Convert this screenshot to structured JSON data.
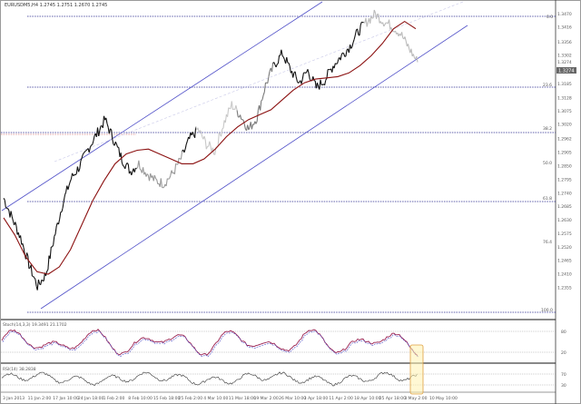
{
  "window": {
    "title": "EURUSDM5,H4 1.2745 1.2751 1.2670 1.2745"
  },
  "chart_data": {
    "type": "line",
    "series_kind": "candlestick-price",
    "symbol": "EURUSD",
    "ylim": [
      1.224,
      1.3505
    ],
    "current_price": "1.3274",
    "price_labels": [
      "1.3470",
      "1.3416",
      "1.3356",
      "1.3302",
      "1.3274",
      "1.3185",
      "1.3128",
      "1.3075",
      "1.3020",
      "1.2962",
      "1.2905",
      "1.2850",
      "1.2795",
      "1.2740",
      "1.2685",
      "1.2630",
      "1.2575",
      "1.2520",
      "1.2465",
      "1.2410",
      "1.2355"
    ],
    "fib_labels": [
      "0.0",
      "23.6",
      "38.2",
      "50.0",
      "61.8",
      "76.4",
      "100.0"
    ],
    "x_labels": [
      "3 Jan 2013",
      "11 Jan 2:00",
      "17 Jan 10:00",
      "24 Jan 18:00",
      "1 Feb 2:00",
      "8 Feb 10:00",
      "15 Feb 18:00",
      "25 Feb 2:00",
      "4 Mar 10:00",
      "11 Mar 18:00",
      "19 Mar 2:00",
      "26 Mar 10:00",
      "3 Apr 18:00",
      "11 Apr 2:00",
      "18 Apr 10:00",
      "25 Apr 18:00",
      "3 May 2:00",
      "10 May 10:00"
    ],
    "ma_series": [
      [
        0,
        1.264
      ],
      [
        3,
        1.257
      ],
      [
        6,
        1.248
      ],
      [
        9,
        1.242
      ],
      [
        12,
        1.241
      ],
      [
        15,
        1.244
      ],
      [
        18,
        1.251
      ],
      [
        21,
        1.261
      ],
      [
        24,
        1.271
      ],
      [
        27,
        1.279
      ],
      [
        30,
        1.286
      ],
      [
        33,
        1.29
      ],
      [
        36,
        1.2915
      ],
      [
        39,
        1.292
      ],
      [
        42,
        1.29
      ],
      [
        45,
        1.288
      ],
      [
        48,
        1.286
      ],
      [
        51,
        1.286
      ],
      [
        54,
        1.288
      ],
      [
        57,
        1.292
      ],
      [
        60,
        1.297
      ],
      [
        63,
        1.301
      ],
      [
        66,
        1.304
      ],
      [
        69,
        1.306
      ],
      [
        72,
        1.308
      ],
      [
        75,
        1.312
      ],
      [
        78,
        1.316
      ],
      [
        81,
        1.319
      ],
      [
        84,
        1.3205
      ],
      [
        87,
        1.321
      ],
      [
        90,
        1.3215
      ],
      [
        93,
        1.323
      ],
      [
        96,
        1.326
      ],
      [
        99,
        1.33
      ],
      [
        102,
        1.335
      ],
      [
        105,
        1.341
      ],
      [
        108,
        1.344
      ],
      [
        111,
        1.341
      ]
    ],
    "price_series": [
      [
        0,
        1.272
      ],
      [
        2,
        1.264
      ],
      [
        4,
        1.256
      ],
      [
        6,
        1.245
      ],
      [
        8,
        1.236
      ],
      [
        10,
        1.241
      ],
      [
        12,
        1.256
      ],
      [
        14,
        1.27
      ],
      [
        16,
        1.28
      ],
      [
        18,
        1.285
      ],
      [
        20,
        1.292
      ],
      [
        22,
        1.298
      ],
      [
        24,
        1.304
      ],
      [
        26,
        1.296
      ],
      [
        28,
        1.288
      ],
      [
        30,
        1.283
      ],
      [
        32,
        1.286
      ],
      [
        34,
        1.282
      ],
      [
        36,
        1.279
      ],
      [
        38,
        1.278
      ],
      [
        40,
        1.282
      ],
      [
        42,
        1.288
      ],
      [
        44,
        1.296
      ],
      [
        46,
        1.3
      ],
      [
        48,
        1.294
      ],
      [
        50,
        1.291
      ],
      [
        52,
        1.302
      ],
      [
        54,
        1.31
      ],
      [
        56,
        1.306
      ],
      [
        58,
        1.3
      ],
      [
        60,
        1.305
      ],
      [
        62,
        1.318
      ],
      [
        64,
        1.326
      ],
      [
        66,
        1.331
      ],
      [
        68,
        1.324
      ],
      [
        70,
        1.319
      ],
      [
        72,
        1.324
      ],
      [
        74,
        1.317
      ],
      [
        76,
        1.32
      ],
      [
        78,
        1.326
      ],
      [
        80,
        1.33
      ],
      [
        82,
        1.334
      ],
      [
        84,
        1.34
      ],
      [
        86,
        1.344
      ],
      [
        88,
        1.347
      ],
      [
        90,
        1.344
      ],
      [
        92,
        1.342
      ],
      [
        94,
        1.339
      ],
      [
        96,
        1.333
      ],
      [
        98,
        1.3274
      ]
    ],
    "oscillators": [
      {
        "name": "Stochastic",
        "label": "Stoch(14,3,3) 19.3491 21.1702",
        "levels": [
          "80",
          "20"
        ]
      },
      {
        "name": "RSI",
        "label": "RSI(14) 38.2838",
        "levels": [
          "70",
          "30"
        ]
      }
    ]
  }
}
